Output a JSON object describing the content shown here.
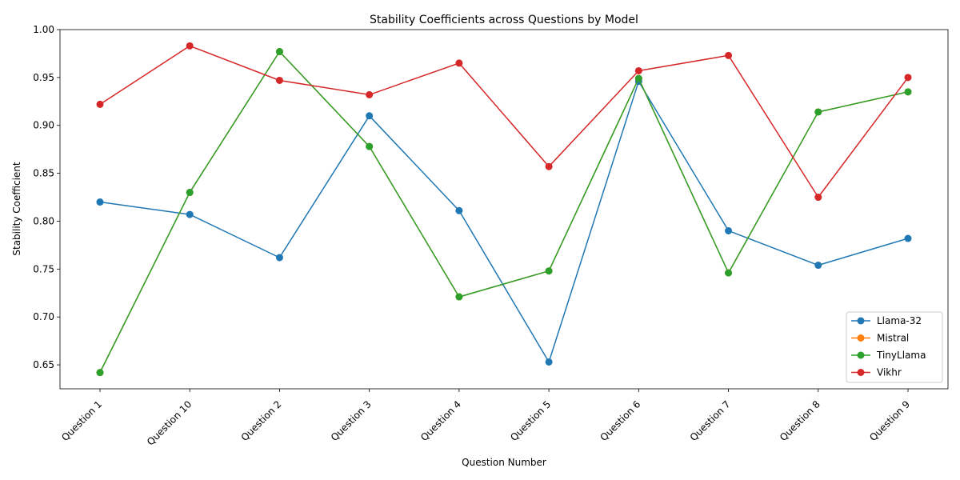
{
  "chart_data": {
    "type": "line",
    "title": "Stability Coefficients across Questions by Model",
    "xlabel": "Question Number",
    "ylabel": "Stability Coefficient",
    "categories": [
      "Question 1",
      "Question 10",
      "Question 2",
      "Question 3",
      "Question 4",
      "Question 5",
      "Question 6",
      "Question 7",
      "Question 8",
      "Question 9"
    ],
    "ylim": [
      0.625,
      1.0
    ],
    "yticks": [
      "0.65",
      "0.70",
      "0.75",
      "0.80",
      "0.85",
      "0.90",
      "0.95",
      "1.00"
    ],
    "grid": false,
    "legend_position": "lower-right",
    "series": [
      {
        "name": "Llama-32",
        "color": "#1f77b4",
        "values": [
          0.82,
          0.807,
          0.762,
          0.91,
          0.811,
          0.653,
          0.946,
          0.79,
          0.754,
          0.782
        ]
      },
      {
        "name": "Mistral",
        "color": "#ff7f0e",
        "values": [
          0.642,
          0.83,
          0.977,
          0.878,
          0.721,
          0.748,
          0.949,
          0.746,
          0.914,
          0.935
        ]
      },
      {
        "name": "TinyLlama",
        "color": "#2ca02c",
        "values": [
          0.642,
          0.83,
          0.977,
          0.878,
          0.721,
          0.748,
          0.949,
          0.746,
          0.914,
          0.935
        ]
      },
      {
        "name": "Vikhr",
        "color": "#d62728",
        "values": [
          0.922,
          0.983,
          0.947,
          0.932,
          0.965,
          0.857,
          0.957,
          0.973,
          0.825,
          0.95
        ]
      }
    ]
  }
}
